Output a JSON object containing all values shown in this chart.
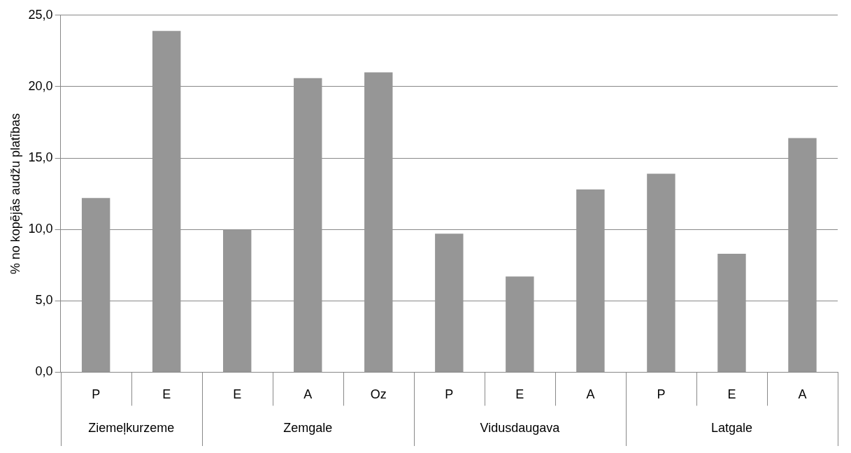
{
  "chart_data": {
    "type": "bar",
    "ylabel": "% no kopējās audžu platības",
    "categories": [
      "P",
      "E",
      "E",
      "A",
      "Oz",
      "P",
      "E",
      "A",
      "P",
      "E",
      "A"
    ],
    "values": [
      12.2,
      23.9,
      10.0,
      20.6,
      21.0,
      9.7,
      6.7,
      12.8,
      13.9,
      8.3,
      16.4
    ],
    "color": "#969696",
    "ylim": [
      0,
      25
    ],
    "yticks": [
      {
        "value": 0,
        "label": "0,0"
      },
      {
        "value": 5,
        "label": "5,0"
      },
      {
        "value": 10,
        "label": "10,0"
      },
      {
        "value": 15,
        "label": "15,0"
      },
      {
        "value": 20,
        "label": "20,0"
      },
      {
        "value": 25,
        "label": "25,0"
      }
    ],
    "grid": "y",
    "legend": false,
    "annotations": [
      "Ziemeļkurzeme",
      "Zemgale",
      "Vidusdaugava",
      "Latgale"
    ]
  }
}
